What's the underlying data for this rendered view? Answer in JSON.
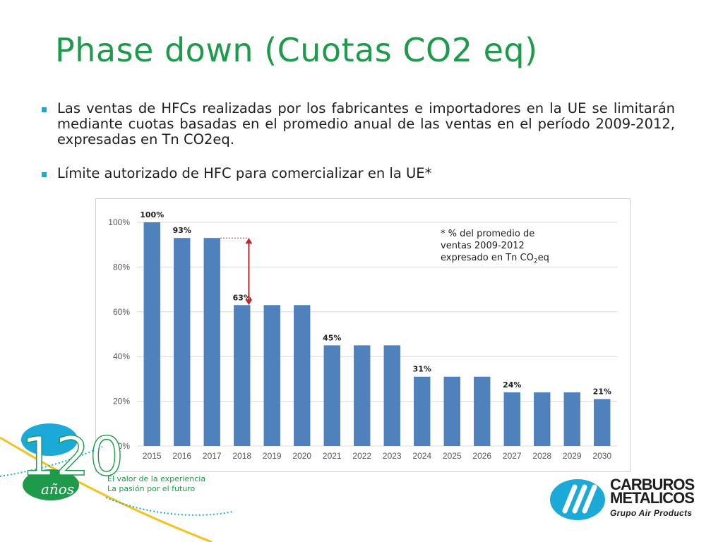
{
  "slide": {
    "title": "Phase down (Cuotas CO2 eq)",
    "accent_color": "#1d9a4a",
    "bullet_color": "#1ba9d8",
    "bullets": [
      "Las ventas de HFCs realizadas por los fabricantes e importadores en la UE se limitarán mediante cuotas basadas en el promedio anual de las ventas en el período 2009-2012, expresadas en Tn CO2eq.",
      "Límite autorizado de HFC para comercializar en la UE*"
    ]
  },
  "chart_data": {
    "type": "bar",
    "categories": [
      "2015",
      "2016",
      "2017",
      "2018",
      "2019",
      "2020",
      "2021",
      "2022",
      "2023",
      "2024",
      "2025",
      "2026",
      "2027",
      "2028",
      "2029",
      "2030"
    ],
    "values": [
      100,
      93,
      93,
      63,
      63,
      63,
      45,
      45,
      45,
      31,
      31,
      31,
      24,
      24,
      24,
      21
    ],
    "data_labels": [
      {
        "index": 0,
        "text": "100%"
      },
      {
        "index": 1,
        "text": "93%"
      },
      {
        "index": 3,
        "text": "63%"
      },
      {
        "index": 6,
        "text": "45%"
      },
      {
        "index": 9,
        "text": "31%"
      },
      {
        "index": 12,
        "text": "24%"
      },
      {
        "index": 15,
        "text": "21%"
      }
    ],
    "y_ticks": [
      "0%",
      "20%",
      "40%",
      "60%",
      "80%",
      "100%"
    ],
    "y_tick_values": [
      0,
      20,
      40,
      60,
      80,
      100
    ],
    "ylim": [
      0,
      100
    ],
    "grid": true,
    "bar_color": "#4f81bd",
    "annotation": {
      "type": "arrow",
      "from_value": 93,
      "to_value": 63,
      "between": [
        "2017",
        "2018"
      ],
      "color": "#c0272d"
    },
    "note": {
      "line1": "* % del promedio de",
      "line2": "ventas 2009-2012",
      "line3_prefix": "expresado en Tn CO",
      "line3_sub": "2",
      "line3_suffix": "eq"
    },
    "title": "",
    "xlabel": "",
    "ylabel": ""
  },
  "footer": {
    "anniversary_number": "120",
    "anniversary_word": "años",
    "tagline_1": "El valor de la experiencia",
    "tagline_2": "La pasión por el futuro"
  },
  "brand": {
    "line1": "CARBUROS",
    "line2": "METALICOS",
    "line3": "Grupo Air Products",
    "logo_color": "#1ba9d8"
  }
}
